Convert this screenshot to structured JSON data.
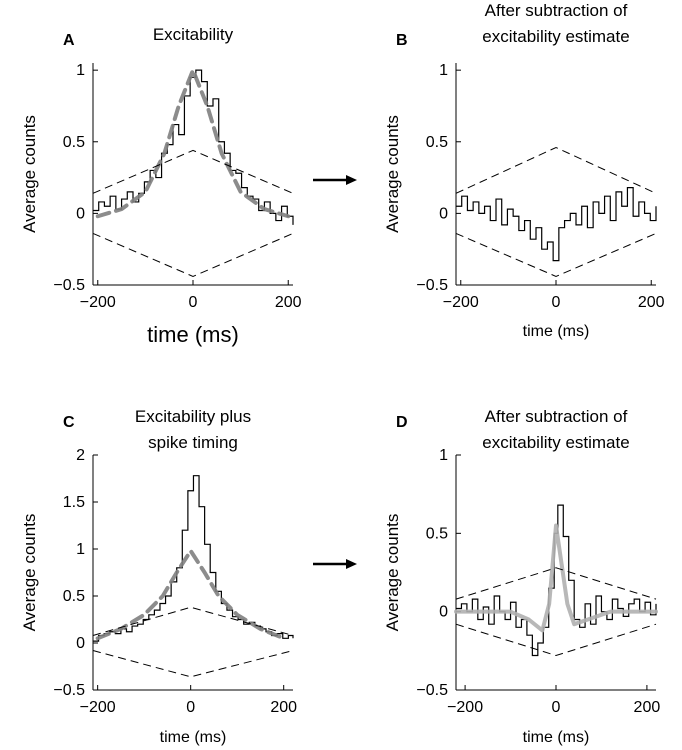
{
  "colors": {
    "data": "#000000",
    "fit": "#808080",
    "fit_light": "#b0b0b0",
    "bounds": "#000000",
    "arrow": "#000000"
  },
  "arrows": [
    {
      "name": "arrow-a-to-b"
    },
    {
      "name": "arrow-c-to-d"
    }
  ],
  "chart_data": [
    {
      "id": "A",
      "type": "line",
      "panel_letter": "A",
      "title": [
        "Excitability"
      ],
      "xlabel": "time (ms)",
      "ylabel": "Average counts",
      "xlim": [
        -210,
        210
      ],
      "ylim": [
        -0.5,
        1.05
      ],
      "xticks": [
        -200,
        0,
        200
      ],
      "xtick_labels": [
        "−200",
        "0",
        "200"
      ],
      "yticks": [
        -0.5,
        0,
        0.5,
        1
      ],
      "ytick_labels": [
        "−0.5",
        "0",
        "0.5",
        "1"
      ],
      "grid": false,
      "series": [
        {
          "role": "data-step",
          "x": [
            -210,
            -198,
            -186,
            -174,
            -162,
            -150,
            -138,
            -126,
            -114,
            -102,
            -90,
            -78,
            -66,
            -54,
            -42,
            -30,
            -18,
            -6,
            6,
            18,
            30,
            42,
            54,
            66,
            78,
            90,
            102,
            114,
            126,
            138,
            150,
            162,
            174,
            186,
            198,
            210
          ],
          "y": [
            0.02,
            0.08,
            0.05,
            0.12,
            0.03,
            0.1,
            0.15,
            0.08,
            0.14,
            0.22,
            0.3,
            0.25,
            0.42,
            0.48,
            0.62,
            0.55,
            0.82,
            0.95,
            1.0,
            0.92,
            0.75,
            0.8,
            0.5,
            0.42,
            0.3,
            0.28,
            0.18,
            0.12,
            0.1,
            0.02,
            0.08,
            0.0,
            -0.05,
            0.05,
            -0.02,
            -0.08
          ]
        },
        {
          "role": "fit",
          "x": [
            -200,
            -150,
            -100,
            -60,
            -30,
            0,
            30,
            60,
            100,
            150,
            200
          ],
          "y": [
            -0.02,
            0.03,
            0.15,
            0.42,
            0.75,
            1.0,
            0.75,
            0.42,
            0.15,
            0.03,
            -0.02
          ]
        },
        {
          "role": "upper-bound",
          "x": [
            -210,
            0,
            210
          ],
          "y": [
            0.14,
            0.44,
            0.14
          ]
        },
        {
          "role": "lower-bound",
          "x": [
            -210,
            0,
            210
          ],
          "y": [
            -0.14,
            -0.44,
            -0.14
          ]
        }
      ]
    },
    {
      "id": "B",
      "type": "line",
      "panel_letter": "B",
      "title": [
        "After subtraction of",
        "excitability estimate"
      ],
      "xlabel": "time (ms)",
      "ylabel": "Average counts",
      "xlim": [
        -210,
        210
      ],
      "ylim": [
        -0.5,
        1.05
      ],
      "xticks": [
        -200,
        0,
        200
      ],
      "xtick_labels": [
        "−200",
        "0",
        "200"
      ],
      "yticks": [
        -0.5,
        0,
        0.5,
        1
      ],
      "ytick_labels": [
        "−0.5",
        "0",
        "0.5",
        "1"
      ],
      "grid": false,
      "series": [
        {
          "role": "data-step",
          "x": [
            -210,
            -198,
            -186,
            -174,
            -162,
            -150,
            -138,
            -126,
            -114,
            -102,
            -90,
            -78,
            -66,
            -54,
            -42,
            -30,
            -18,
            -6,
            6,
            18,
            30,
            42,
            54,
            66,
            78,
            90,
            102,
            114,
            126,
            138,
            150,
            162,
            174,
            186,
            198,
            210
          ],
          "y": [
            0.05,
            0.12,
            0.02,
            0.08,
            0.0,
            0.05,
            -0.05,
            0.1,
            -0.08,
            0.03,
            -0.02,
            -0.12,
            -0.05,
            -0.18,
            -0.1,
            -0.25,
            -0.2,
            -0.33,
            -0.1,
            -0.05,
            0.0,
            -0.08,
            0.05,
            -0.1,
            0.08,
            0.0,
            0.12,
            -0.05,
            0.15,
            0.05,
            0.18,
            -0.02,
            0.08,
            0.0,
            -0.05,
            0.05
          ]
        },
        {
          "role": "upper-bound",
          "x": [
            -210,
            0,
            210
          ],
          "y": [
            0.14,
            0.46,
            0.14
          ]
        },
        {
          "role": "lower-bound",
          "x": [
            -210,
            0,
            210
          ],
          "y": [
            -0.14,
            -0.44,
            -0.14
          ]
        }
      ]
    },
    {
      "id": "C",
      "type": "line",
      "panel_letter": "C",
      "title": [
        "Excitability plus",
        "spike timing"
      ],
      "xlabel": "time (ms)",
      "ylabel": "Average counts",
      "xlim": [
        -210,
        220
      ],
      "ylim": [
        -0.5,
        2.0
      ],
      "xticks": [
        -200,
        0,
        200
      ],
      "xtick_labels": [
        "−200",
        "0",
        "200"
      ],
      "yticks": [
        -0.5,
        0,
        0.5,
        1,
        1.5,
        2
      ],
      "ytick_labels": [
        "−0.5",
        "0",
        "0.5",
        "1",
        "1.5",
        "2"
      ],
      "grid": false,
      "series": [
        {
          "role": "data-step",
          "x": [
            -210,
            -198,
            -186,
            -174,
            -162,
            -150,
            -138,
            -126,
            -114,
            -102,
            -90,
            -78,
            -66,
            -54,
            -42,
            -30,
            -18,
            -6,
            6,
            18,
            30,
            42,
            54,
            66,
            78,
            90,
            102,
            114,
            126,
            138,
            150,
            162,
            174,
            186,
            198,
            210,
            220
          ],
          "y": [
            0.02,
            0.08,
            0.1,
            0.12,
            0.1,
            0.15,
            0.12,
            0.18,
            0.2,
            0.25,
            0.3,
            0.35,
            0.42,
            0.5,
            0.65,
            0.8,
            1.2,
            1.62,
            1.78,
            1.45,
            1.05,
            0.75,
            0.55,
            0.42,
            0.35,
            0.28,
            0.25,
            0.2,
            0.22,
            0.18,
            0.15,
            0.12,
            0.08,
            0.1,
            0.05,
            0.08,
            0.05
          ]
        },
        {
          "role": "fit",
          "x": [
            -200,
            -150,
            -100,
            -60,
            -30,
            0,
            30,
            60,
            100,
            150,
            200
          ],
          "y": [
            0.05,
            0.15,
            0.3,
            0.5,
            0.75,
            0.98,
            0.75,
            0.5,
            0.3,
            0.15,
            0.05
          ]
        },
        {
          "role": "upper-bound",
          "x": [
            -210,
            0,
            220
          ],
          "y": [
            0.08,
            0.38,
            0.08
          ]
        },
        {
          "role": "lower-bound",
          "x": [
            -210,
            0,
            220
          ],
          "y": [
            -0.08,
            -0.36,
            -0.08
          ]
        }
      ]
    },
    {
      "id": "D",
      "type": "line",
      "panel_letter": "D",
      "title": [
        "After subtraction of",
        "excitability estimate"
      ],
      "xlabel": "time (ms)",
      "ylabel": "Average counts",
      "xlim": [
        -220,
        220
      ],
      "ylim": [
        -0.5,
        1.0
      ],
      "xticks": [
        -200,
        0,
        200
      ],
      "xtick_labels": [
        "−200",
        "0",
        "200"
      ],
      "yticks": [
        -0.5,
        0,
        0.5,
        1
      ],
      "ytick_labels": [
        "−0.5",
        "0",
        "0.5",
        "1"
      ],
      "grid": false,
      "series": [
        {
          "role": "data-step",
          "x": [
            -220,
            -208,
            -196,
            -184,
            -172,
            -160,
            -148,
            -136,
            -124,
            -112,
            -100,
            -88,
            -76,
            -64,
            -52,
            -40,
            -28,
            -16,
            -4,
            4,
            16,
            28,
            40,
            52,
            64,
            76,
            88,
            100,
            112,
            124,
            136,
            148,
            160,
            172,
            184,
            196,
            208,
            220
          ],
          "y": [
            0.02,
            0.05,
            0.0,
            0.08,
            -0.05,
            0.03,
            -0.08,
            0.1,
            0.0,
            -0.05,
            0.06,
            -0.1,
            -0.05,
            -0.15,
            -0.28,
            -0.2,
            -0.1,
            0.15,
            0.5,
            0.68,
            0.48,
            0.2,
            -0.05,
            -0.1,
            0.05,
            -0.08,
            0.1,
            0.0,
            -0.05,
            0.08,
            0.02,
            -0.03,
            0.05,
            0.08,
            0.0,
            0.06,
            -0.02,
            0.05
          ]
        },
        {
          "role": "fit-light",
          "x": [
            -220,
            -150,
            -100,
            -60,
            -30,
            -15,
            0,
            10,
            25,
            40,
            70,
            120,
            220
          ],
          "y": [
            0.0,
            0.0,
            0.0,
            -0.05,
            -0.12,
            0.05,
            0.55,
            0.35,
            0.05,
            -0.08,
            -0.05,
            0.0,
            0.0
          ]
        },
        {
          "role": "upper-bound",
          "x": [
            -220,
            0,
            220
          ],
          "y": [
            0.08,
            0.28,
            0.08
          ]
        },
        {
          "role": "lower-bound",
          "x": [
            -220,
            0,
            220
          ],
          "y": [
            -0.08,
            -0.28,
            -0.08
          ]
        }
      ]
    }
  ]
}
